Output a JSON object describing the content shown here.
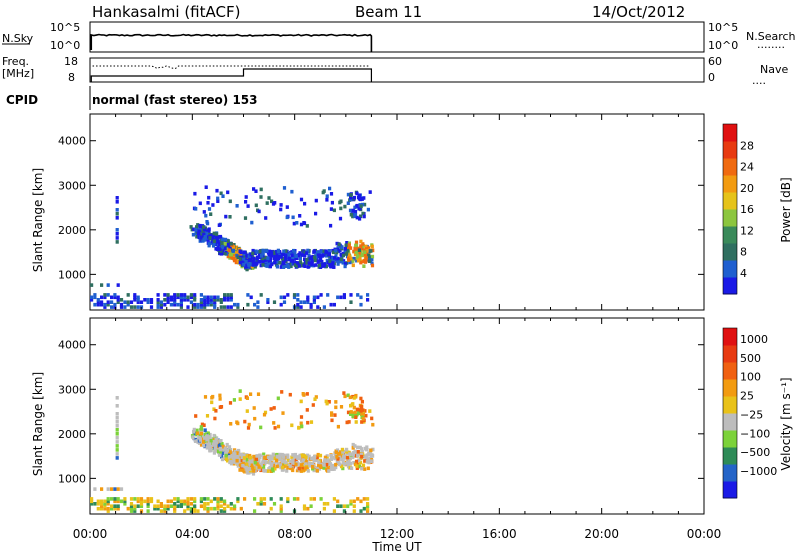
{
  "header": {
    "station": "Hankasalmi (fitACF)",
    "beam": "Beam 11",
    "date": "14/Oct/2012"
  },
  "panels": {
    "nsky": {
      "left_label": "N.Sky",
      "left_ticks": [
        "10^5",
        "10^0"
      ],
      "right_ticks": [
        "10^5",
        "10^0"
      ],
      "right_label": "N.Search",
      "right_legend": "........"
    },
    "freq": {
      "left_label_1": "Freq.",
      "left_label_2": "[MHz]",
      "left_ticks": [
        "18",
        "8"
      ],
      "right_ticks": [
        "60",
        "0"
      ],
      "right_label": "Nave",
      "right_legend": "...."
    },
    "cpid": {
      "label": "CPID",
      "text": "normal (fast stereo) 153"
    }
  },
  "chart_data": [
    {
      "type": "heatmap",
      "name": "power",
      "ylabel": "Slant Range [km]",
      "xlabel": "Time UT",
      "x_ticks": [
        "00:00",
        "04:00",
        "08:00",
        "12:00",
        "16:00",
        "20:00",
        "00:00"
      ],
      "y_ticks": [
        1000,
        2000,
        3000,
        4000
      ],
      "ylim": [
        200,
        4600
      ],
      "xlim_hours": [
        0,
        24
      ],
      "colorbar": {
        "label": "Power [dB]",
        "ticks": [
          "4",
          "8",
          "12",
          "16",
          "20",
          "24",
          "28"
        ],
        "colors": [
          "#1a1ae6",
          "#1f5fd0",
          "#2f6f60",
          "#3a8a5a",
          "#8cc63f",
          "#e6c31a",
          "#f29b11",
          "#f06a10",
          "#e83a10",
          "#e01010"
        ]
      }
    },
    {
      "type": "heatmap",
      "name": "velocity",
      "ylabel": "Slant Range [km]",
      "xlabel": "Time UT",
      "x_ticks": [
        "00:00",
        "04:00",
        "08:00",
        "12:00",
        "16:00",
        "20:00",
        "00:00"
      ],
      "y_ticks": [
        1000,
        2000,
        3000,
        4000
      ],
      "ylim": [
        200,
        4600
      ],
      "xlim_hours": [
        0,
        24
      ],
      "colorbar": {
        "label": "Velocity [m s⁻¹]",
        "ticks": [
          "1000",
          "500",
          "100",
          "25",
          "−25",
          "−100",
          "−500",
          "−1000"
        ],
        "colors": [
          "#1a1ae6",
          "#2464c8",
          "#2e8b57",
          "#7cd23a",
          "#bdbdbd",
          "#e9c21a",
          "#f29b11",
          "#f06010",
          "#e83a10",
          "#e01010"
        ]
      }
    }
  ],
  "footer": {
    "time_label": "Time UT"
  }
}
